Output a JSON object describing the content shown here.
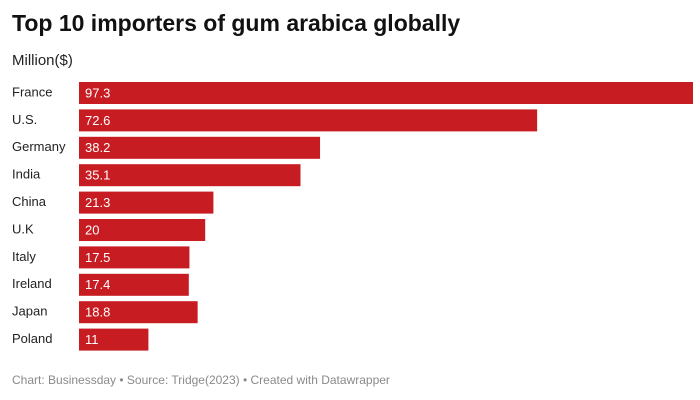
{
  "chart_data": {
    "type": "bar",
    "orientation": "horizontal",
    "title": "Top 10 importers of gum arabica globally",
    "subtitle": "Million($)",
    "categories": [
      "France",
      "U.S.",
      "Germany",
      "India",
      "China",
      "U.K",
      "Italy",
      "Ireland",
      "Japan",
      "Poland"
    ],
    "values": [
      97.3,
      72.6,
      38.2,
      35.1,
      21.3,
      20,
      17.5,
      17.4,
      18.8,
      11
    ],
    "color": "#c71c22",
    "footer": "Chart: Businessday • Source: Tridge(2023) • Created with Datawrapper"
  }
}
